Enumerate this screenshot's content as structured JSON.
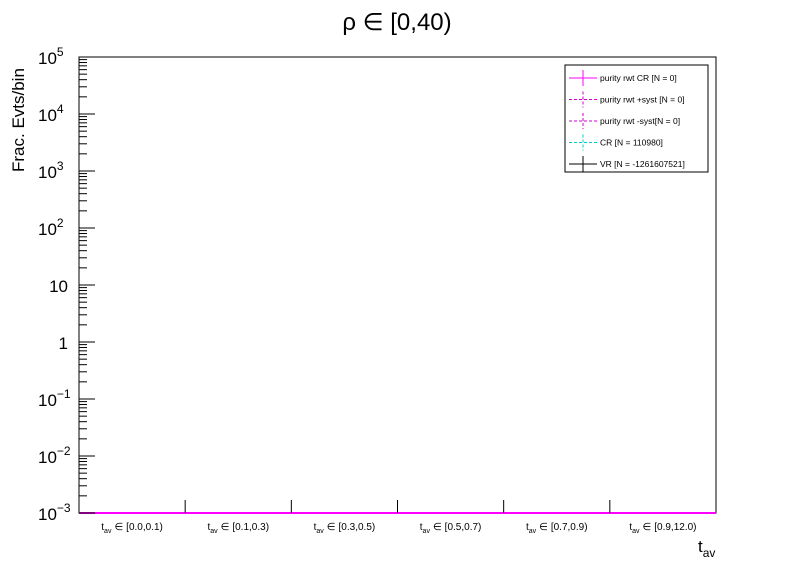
{
  "chart_data": {
    "type": "bar",
    "title": "ρ ∈ [0,40)",
    "ylabel": "Frac. Evts/bin",
    "xlabel": {
      "symbol": "t",
      "subscript": "av"
    },
    "category_operator": "∈",
    "categories": [
      "[0.0,0.1)",
      "[0.1,0.3)",
      "[0.3,0.5)",
      "[0.5,0.7)",
      "[0.7,0.9)",
      "[0.9,12.0)"
    ],
    "log_y": true,
    "ylim": [
      0.001,
      100000
    ],
    "yticks": [
      {
        "value": 0.001,
        "label": "10",
        "exponent": "−3"
      },
      {
        "value": 0.01,
        "label": "10",
        "exponent": "−2"
      },
      {
        "value": 0.1,
        "label": "10",
        "exponent": "−1"
      },
      1,
      10,
      {
        "value": 100,
        "label": "10",
        "exponent": "2"
      },
      {
        "value": 1000,
        "label": "10",
        "exponent": "3"
      },
      {
        "value": 10000,
        "label": "10",
        "exponent": "4"
      },
      {
        "value": 100000,
        "label": "10",
        "exponent": "5"
      }
    ],
    "legend_position": "upper right",
    "series": [
      {
        "name": "purity rwt CR [N = 0]",
        "color": "#ff00ff",
        "dash": false
      },
      {
        "name": "purity rwt +syst [N = 0]",
        "color": "#cc00cc",
        "dash": true
      },
      {
        "name": "purity rwt -syst[N = 0]",
        "color": "#cc00cc",
        "dash": true
      },
      {
        "name": "CR [N = 110980]",
        "color": "#00cccc",
        "dash": true
      },
      {
        "name": "VR [N = -1261607521]",
        "color": "#000000",
        "dash": false
      }
    ]
  }
}
